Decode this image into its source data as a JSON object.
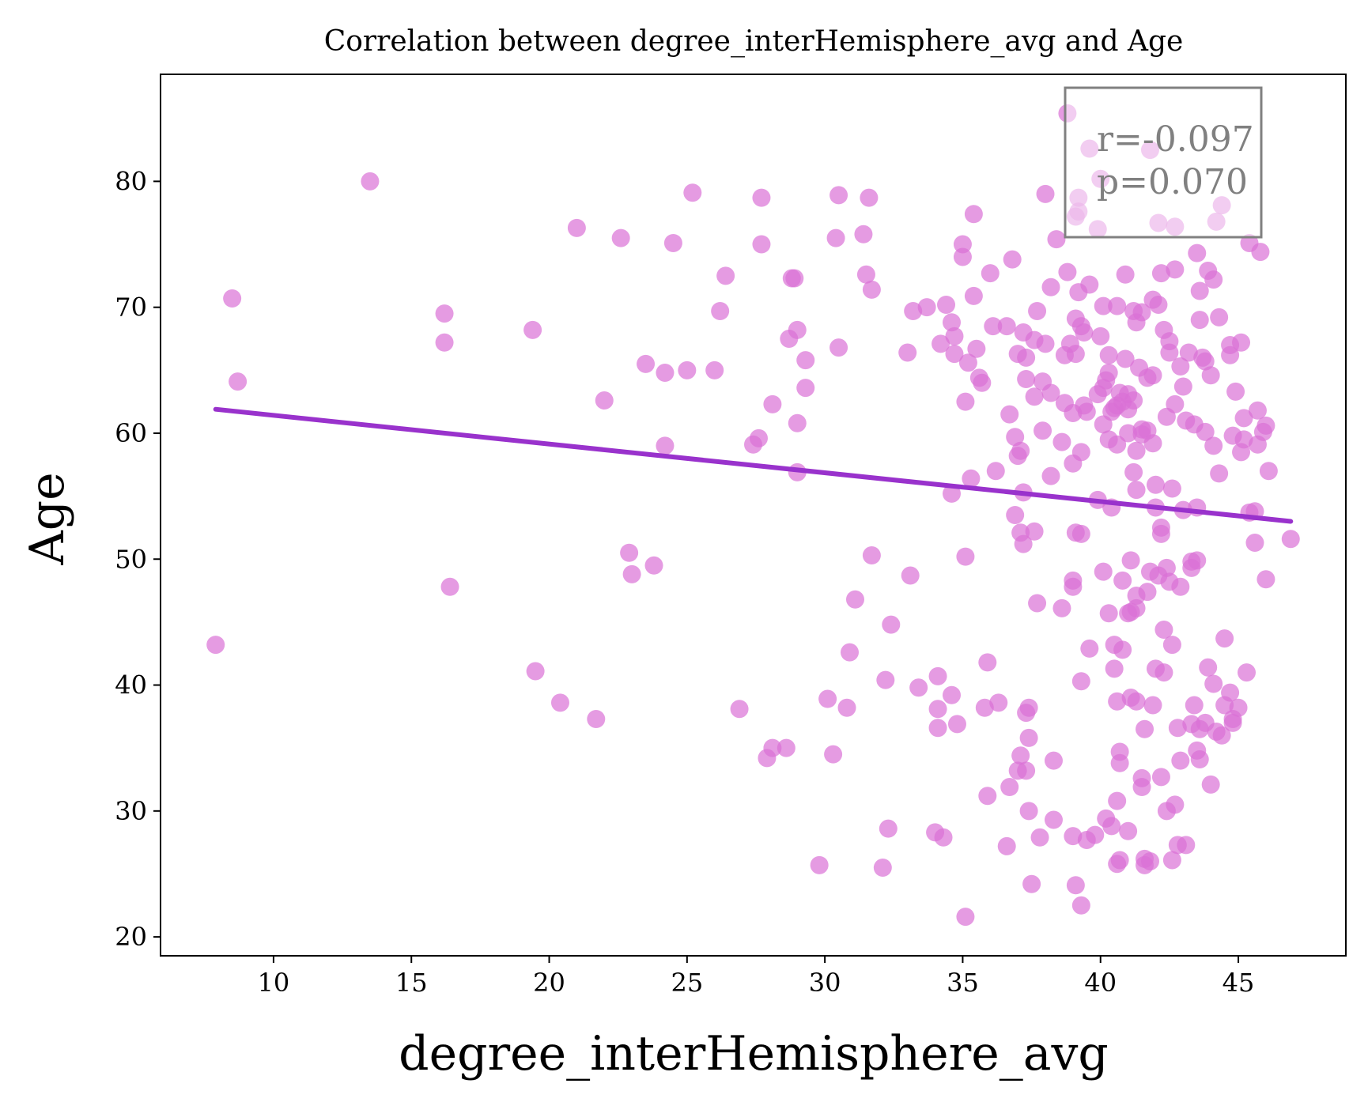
{
  "chart_data": {
    "type": "scatter",
    "title": "Correlation between degree_interHemisphere_avg and Age",
    "xlabel": "degree_interHemisphere_avg",
    "ylabel": "Age",
    "xlim": [
      5.9,
      48.9
    ],
    "ylim": [
      18.5,
      88.5
    ],
    "xticks": [
      10,
      15,
      20,
      25,
      30,
      35,
      40,
      45
    ],
    "yticks": [
      20,
      30,
      40,
      50,
      60,
      70,
      80
    ],
    "grid": false,
    "annotation": {
      "lines": [
        "r=-0.097",
        "p=0.070"
      ],
      "placement": "top-right"
    },
    "colors": {
      "points": "#da70d6",
      "fit_line": "#9932cc",
      "annotation": "#808080"
    },
    "fit_line": {
      "x": [
        7.9,
        46.9
      ],
      "y": [
        61.9,
        53.0
      ]
    },
    "points": [
      [
        7.9,
        43.2
      ],
      [
        8.5,
        70.7
      ],
      [
        8.7,
        64.1
      ],
      [
        13.5,
        80.0
      ],
      [
        16.2,
        69.5
      ],
      [
        16.2,
        67.2
      ],
      [
        16.4,
        47.8
      ],
      [
        19.4,
        68.2
      ],
      [
        19.5,
        41.1
      ],
      [
        20.4,
        38.6
      ],
      [
        21.0,
        76.3
      ],
      [
        21.7,
        37.3
      ],
      [
        22.0,
        62.6
      ],
      [
        22.6,
        75.5
      ],
      [
        22.9,
        50.5
      ],
      [
        23.0,
        48.8
      ],
      [
        23.5,
        65.5
      ],
      [
        23.8,
        49.5
      ],
      [
        24.2,
        64.8
      ],
      [
        24.2,
        59.0
      ],
      [
        24.5,
        75.1
      ],
      [
        25.0,
        65.0
      ],
      [
        25.2,
        79.1
      ],
      [
        26.0,
        65.0
      ],
      [
        26.2,
        69.7
      ],
      [
        26.4,
        72.5
      ],
      [
        26.9,
        38.1
      ],
      [
        27.4,
        59.1
      ],
      [
        27.6,
        59.6
      ],
      [
        27.7,
        78.7
      ],
      [
        27.7,
        75.0
      ],
      [
        27.9,
        34.2
      ],
      [
        28.1,
        35.0
      ],
      [
        28.1,
        62.3
      ],
      [
        28.6,
        35.0
      ],
      [
        28.7,
        67.5
      ],
      [
        28.8,
        72.3
      ],
      [
        28.9,
        72.3
      ],
      [
        29.0,
        56.9
      ],
      [
        29.0,
        60.8
      ],
      [
        29.0,
        68.2
      ],
      [
        29.3,
        65.8
      ],
      [
        29.3,
        63.6
      ],
      [
        29.8,
        25.7
      ],
      [
        30.1,
        38.9
      ],
      [
        30.4,
        75.5
      ],
      [
        30.3,
        34.5
      ],
      [
        30.5,
        66.8
      ],
      [
        30.5,
        78.9
      ],
      [
        30.8,
        38.2
      ],
      [
        30.9,
        42.6
      ],
      [
        31.1,
        46.8
      ],
      [
        31.4,
        75.8
      ],
      [
        31.5,
        72.6
      ],
      [
        31.6,
        78.7
      ],
      [
        31.7,
        50.3
      ],
      [
        31.7,
        71.4
      ],
      [
        32.1,
        25.5
      ],
      [
        32.2,
        40.4
      ],
      [
        32.3,
        28.6
      ],
      [
        32.4,
        44.8
      ],
      [
        33.0,
        66.4
      ],
      [
        33.1,
        48.7
      ],
      [
        33.2,
        69.7
      ],
      [
        33.4,
        39.8
      ],
      [
        33.7,
        70.0
      ],
      [
        34.0,
        28.3
      ],
      [
        34.1,
        40.7
      ],
      [
        34.1,
        38.1
      ],
      [
        34.1,
        36.6
      ],
      [
        34.2,
        67.1
      ],
      [
        34.3,
        27.9
      ],
      [
        34.4,
        70.2
      ],
      [
        34.6,
        68.8
      ],
      [
        34.6,
        39.2
      ],
      [
        34.6,
        55.2
      ],
      [
        34.7,
        66.3
      ],
      [
        34.7,
        67.7
      ],
      [
        34.8,
        36.9
      ],
      [
        35.0,
        75.0
      ],
      [
        35.0,
        74.0
      ],
      [
        35.1,
        21.6
      ],
      [
        35.1,
        50.2
      ],
      [
        35.1,
        62.5
      ],
      [
        35.2,
        65.6
      ],
      [
        35.3,
        56.4
      ],
      [
        35.4,
        70.9
      ],
      [
        35.4,
        77.4
      ],
      [
        35.5,
        66.7
      ],
      [
        35.6,
        64.4
      ],
      [
        35.7,
        64.0
      ],
      [
        35.8,
        38.2
      ],
      [
        35.9,
        31.2
      ],
      [
        35.9,
        41.8
      ],
      [
        36.0,
        72.7
      ],
      [
        36.1,
        68.5
      ],
      [
        36.2,
        57.0
      ],
      [
        36.3,
        38.6
      ],
      [
        36.6,
        27.2
      ],
      [
        36.6,
        68.5
      ],
      [
        36.7,
        31.9
      ],
      [
        36.7,
        61.5
      ],
      [
        36.8,
        73.8
      ],
      [
        36.9,
        53.5
      ],
      [
        36.9,
        59.7
      ],
      [
        37.0,
        58.2
      ],
      [
        37.0,
        66.3
      ],
      [
        37.0,
        33.2
      ],
      [
        37.1,
        52.1
      ],
      [
        37.1,
        34.4
      ],
      [
        37.1,
        58.6
      ],
      [
        37.2,
        55.3
      ],
      [
        37.2,
        51.2
      ],
      [
        37.2,
        68.0
      ],
      [
        37.3,
        37.8
      ],
      [
        37.3,
        66.0
      ],
      [
        37.3,
        64.3
      ],
      [
        37.3,
        33.2
      ],
      [
        37.4,
        30.0
      ],
      [
        37.4,
        38.2
      ],
      [
        37.4,
        35.8
      ],
      [
        37.5,
        24.2
      ],
      [
        37.6,
        62.9
      ],
      [
        37.6,
        52.2
      ],
      [
        37.6,
        67.4
      ],
      [
        37.7,
        69.7
      ],
      [
        37.7,
        46.5
      ],
      [
        37.8,
        27.9
      ],
      [
        37.9,
        64.1
      ],
      [
        37.9,
        60.2
      ],
      [
        38.0,
        67.1
      ],
      [
        38.0,
        79.0
      ],
      [
        38.2,
        71.6
      ],
      [
        38.2,
        63.2
      ],
      [
        38.2,
        56.6
      ],
      [
        38.3,
        29.3
      ],
      [
        38.3,
        34.0
      ],
      [
        38.4,
        75.4
      ],
      [
        38.6,
        59.3
      ],
      [
        38.6,
        46.1
      ],
      [
        38.7,
        66.2
      ],
      [
        38.7,
        62.4
      ],
      [
        38.8,
        72.8
      ],
      [
        38.8,
        85.4
      ],
      [
        38.9,
        67.1
      ],
      [
        39.0,
        61.6
      ],
      [
        39.0,
        57.6
      ],
      [
        39.0,
        48.3
      ],
      [
        39.0,
        47.8
      ],
      [
        39.0,
        28.0
      ],
      [
        39.1,
        52.1
      ],
      [
        39.1,
        69.1
      ],
      [
        39.1,
        66.3
      ],
      [
        39.1,
        24.1
      ],
      [
        39.2,
        71.2
      ],
      [
        39.2,
        78.7
      ],
      [
        39.3,
        68.5
      ],
      [
        39.3,
        22.5
      ],
      [
        39.3,
        52.0
      ],
      [
        39.3,
        40.3
      ],
      [
        39.3,
        58.5
      ],
      [
        39.4,
        68.0
      ],
      [
        39.4,
        62.2
      ],
      [
        39.5,
        27.7
      ],
      [
        39.5,
        61.7
      ],
      [
        39.6,
        42.9
      ],
      [
        39.6,
        71.8
      ],
      [
        39.8,
        28.1
      ],
      [
        39.9,
        54.7
      ],
      [
        39.9,
        63.1
      ],
      [
        40.0,
        67.7
      ],
      [
        40.1,
        63.6
      ],
      [
        40.1,
        49.0
      ],
      [
        40.1,
        70.1
      ],
      [
        40.1,
        60.7
      ],
      [
        40.2,
        29.4
      ],
      [
        40.2,
        64.2
      ],
      [
        40.3,
        64.8
      ],
      [
        40.3,
        45.7
      ],
      [
        40.3,
        59.5
      ],
      [
        40.3,
        66.2
      ],
      [
        40.4,
        54.1
      ],
      [
        40.4,
        61.7
      ],
      [
        40.4,
        28.8
      ],
      [
        40.5,
        62.0
      ],
      [
        40.5,
        43.2
      ],
      [
        40.5,
        41.3
      ],
      [
        40.6,
        59.1
      ],
      [
        40.6,
        62.2
      ],
      [
        40.6,
        70.1
      ],
      [
        40.6,
        25.8
      ],
      [
        40.6,
        30.8
      ],
      [
        40.6,
        38.7
      ],
      [
        40.7,
        34.7
      ],
      [
        40.7,
        63.2
      ],
      [
        40.7,
        26.1
      ],
      [
        40.7,
        33.8
      ],
      [
        40.8,
        48.3
      ],
      [
        40.8,
        42.8
      ],
      [
        40.8,
        62.5
      ],
      [
        40.9,
        65.9
      ],
      [
        40.9,
        72.6
      ],
      [
        41.0,
        28.4
      ],
      [
        41.0,
        60.0
      ],
      [
        41.0,
        61.9
      ],
      [
        41.0,
        63.1
      ],
      [
        41.0,
        45.7
      ],
      [
        41.1,
        49.9
      ],
      [
        41.1,
        39.0
      ],
      [
        41.1,
        45.8
      ],
      [
        41.2,
        62.6
      ],
      [
        41.2,
        69.7
      ],
      [
        41.2,
        56.9
      ],
      [
        41.3,
        58.6
      ],
      [
        41.3,
        68.8
      ],
      [
        41.3,
        55.5
      ],
      [
        41.3,
        47.1
      ],
      [
        41.3,
        38.7
      ],
      [
        41.3,
        46.1
      ],
      [
        41.4,
        65.2
      ],
      [
        41.5,
        69.6
      ],
      [
        41.5,
        59.9
      ],
      [
        41.5,
        60.3
      ],
      [
        41.5,
        32.6
      ],
      [
        41.5,
        31.9
      ],
      [
        41.6,
        26.2
      ],
      [
        41.6,
        36.5
      ],
      [
        41.6,
        25.7
      ],
      [
        41.7,
        47.4
      ],
      [
        41.7,
        60.2
      ],
      [
        41.7,
        64.4
      ],
      [
        41.8,
        49.0
      ],
      [
        41.8,
        26.0
      ],
      [
        41.9,
        64.6
      ],
      [
        41.9,
        59.2
      ],
      [
        41.9,
        70.6
      ],
      [
        41.9,
        38.4
      ],
      [
        42.0,
        41.3
      ],
      [
        42.0,
        55.9
      ],
      [
        42.0,
        54.1
      ],
      [
        42.1,
        48.7
      ],
      [
        42.1,
        70.2
      ],
      [
        42.2,
        52.5
      ],
      [
        42.2,
        52.0
      ],
      [
        42.2,
        72.7
      ],
      [
        42.2,
        32.7
      ],
      [
        42.3,
        68.2
      ],
      [
        42.3,
        41.0
      ],
      [
        42.3,
        44.4
      ],
      [
        42.4,
        49.3
      ],
      [
        42.4,
        61.3
      ],
      [
        42.4,
        30.0
      ],
      [
        42.5,
        67.3
      ],
      [
        42.5,
        66.4
      ],
      [
        42.5,
        48.2
      ],
      [
        42.6,
        43.2
      ],
      [
        42.6,
        55.6
      ],
      [
        42.6,
        26.1
      ],
      [
        42.7,
        62.3
      ],
      [
        42.7,
        73.0
      ],
      [
        42.7,
        30.5
      ],
      [
        42.8,
        27.3
      ],
      [
        42.8,
        36.6
      ],
      [
        42.9,
        65.3
      ],
      [
        42.9,
        47.8
      ],
      [
        42.9,
        34.0
      ],
      [
        43.0,
        63.7
      ],
      [
        43.0,
        53.9
      ],
      [
        43.1,
        27.3
      ],
      [
        43.1,
        61.0
      ],
      [
        43.2,
        66.4
      ],
      [
        43.3,
        49.8
      ],
      [
        43.3,
        49.3
      ],
      [
        43.3,
        36.9
      ],
      [
        43.4,
        60.7
      ],
      [
        43.4,
        38.4
      ],
      [
        43.5,
        74.3
      ],
      [
        43.5,
        49.9
      ],
      [
        43.5,
        34.8
      ],
      [
        43.5,
        54.1
      ],
      [
        43.6,
        69.0
      ],
      [
        43.6,
        71.3
      ],
      [
        43.6,
        34.1
      ],
      [
        43.6,
        36.5
      ],
      [
        43.7,
        66.0
      ],
      [
        43.8,
        65.7
      ],
      [
        43.8,
        60.1
      ],
      [
        43.8,
        37.0
      ],
      [
        43.9,
        41.4
      ],
      [
        43.9,
        72.9
      ],
      [
        44.0,
        32.1
      ],
      [
        44.0,
        64.6
      ],
      [
        44.1,
        59.0
      ],
      [
        44.1,
        72.2
      ],
      [
        44.1,
        40.1
      ],
      [
        44.2,
        36.3
      ],
      [
        44.3,
        56.8
      ],
      [
        44.3,
        69.2
      ],
      [
        44.4,
        36.0
      ],
      [
        44.5,
        43.7
      ],
      [
        44.5,
        38.4
      ],
      [
        44.7,
        66.2
      ],
      [
        44.7,
        67.0
      ],
      [
        44.7,
        39.4
      ],
      [
        44.8,
        37.0
      ],
      [
        44.8,
        37.3
      ],
      [
        44.8,
        59.8
      ],
      [
        44.9,
        63.3
      ],
      [
        45.0,
        38.2
      ],
      [
        45.1,
        67.2
      ],
      [
        45.1,
        58.5
      ],
      [
        45.2,
        59.5
      ],
      [
        45.2,
        61.2
      ],
      [
        45.3,
        41.0
      ],
      [
        45.4,
        75.1
      ],
      [
        45.4,
        53.7
      ],
      [
        45.6,
        51.3
      ],
      [
        45.6,
        53.8
      ],
      [
        45.7,
        61.8
      ],
      [
        45.7,
        59.1
      ],
      [
        45.8,
        74.4
      ],
      [
        45.9,
        60.1
      ],
      [
        46.0,
        60.6
      ],
      [
        46.0,
        48.4
      ],
      [
        46.1,
        57.0
      ],
      [
        46.9,
        51.6
      ],
      [
        39.1,
        77.2
      ],
      [
        39.2,
        77.6
      ],
      [
        39.9,
        76.2
      ],
      [
        40.0,
        80.2
      ],
      [
        41.8,
        82.5
      ],
      [
        42.1,
        76.7
      ],
      [
        42.7,
        76.4
      ],
      [
        44.2,
        76.8
      ],
      [
        44.4,
        78.1
      ],
      [
        39.6,
        82.6
      ]
    ]
  }
}
